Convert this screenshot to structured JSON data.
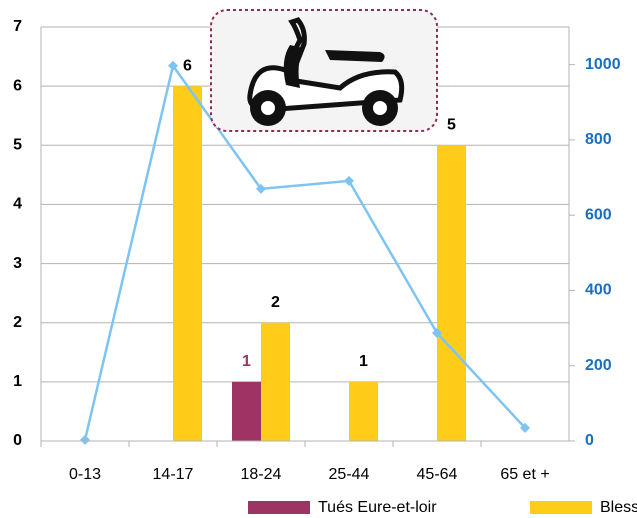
{
  "chart_data": {
    "type": "bar",
    "categories": [
      "0-13",
      "14-17",
      "18-24",
      "25-44",
      "45-64",
      "65 et +"
    ],
    "series": [
      {
        "name": "Tués Eure-et-loir",
        "color": "#9e3464",
        "label_color": "#9e3464",
        "values": [
          null,
          null,
          1,
          null,
          null,
          null
        ]
      },
      {
        "name": "Blessés Eure-et-loir",
        "color": "#ffcc1a",
        "label_color": "#000000",
        "values": [
          null,
          6,
          2,
          1,
          5,
          null
        ]
      },
      {
        "type": "line",
        "axis": "y2",
        "color": "#7ec4f2",
        "values": [
          3,
          997,
          670,
          691,
          287,
          35
        ]
      }
    ],
    "ylim": [
      0,
      7
    ],
    "yticks": [
      0,
      1,
      2,
      3,
      4,
      5,
      6,
      7
    ],
    "y2lim": [
      0,
      1100
    ],
    "y2ticks": [
      0,
      200,
      400,
      600,
      800,
      1000
    ],
    "y2_color": "#1a6fc0",
    "grid": true
  }
}
